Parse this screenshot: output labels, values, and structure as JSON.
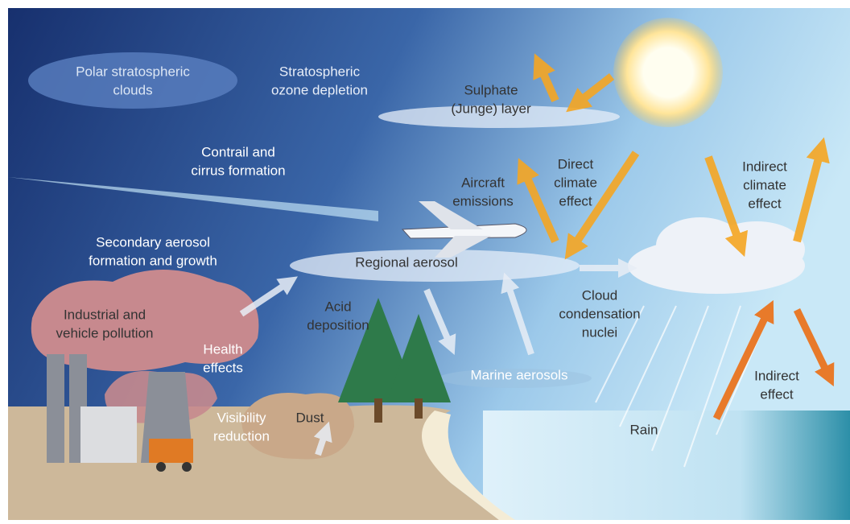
{
  "labels": [
    {
      "lines": [
        "Polar stratospheric",
        "clouds"
      ]
    },
    {
      "lines": [
        "Stratospheric",
        "ozone depletion"
      ]
    },
    {
      "lines": [
        "Sulphate",
        "(Junge) layer"
      ]
    },
    {
      "lines": [
        "Contrail and",
        "cirrus formation"
      ]
    },
    {
      "lines": [
        "Aircraft",
        "emissions"
      ]
    },
    {
      "lines": [
        "Direct",
        "climate",
        "effect"
      ]
    },
    {
      "lines": [
        "Indirect",
        "climate",
        "effect"
      ]
    },
    {
      "lines": [
        "Secondary aerosol",
        "formation and growth"
      ]
    },
    {
      "lines": [
        "Regional aerosol"
      ]
    },
    {
      "lines": [
        "Industrial and",
        "vehicle pollution"
      ]
    },
    {
      "lines": [
        "Acid",
        "deposition"
      ]
    },
    {
      "lines": [
        "Cloud",
        "condensation",
        "nuclei"
      ]
    },
    {
      "lines": [
        "Health",
        "effects"
      ]
    },
    {
      "lines": [
        "Marine aerosols"
      ]
    },
    {
      "lines": [
        "Indirect",
        "effect"
      ]
    },
    {
      "lines": [
        "Visibility",
        "reduction"
      ]
    },
    {
      "lines": [
        "Dust"
      ]
    },
    {
      "lines": [
        "Rain"
      ]
    }
  ]
}
